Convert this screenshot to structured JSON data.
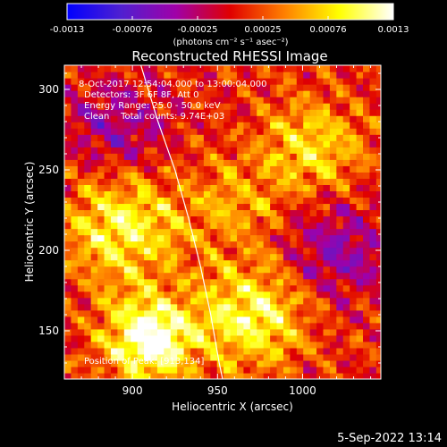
{
  "chart_data": {
    "type": "heatmap",
    "title": "Reconstructed RHESSI Image",
    "xlabel": "Heliocentric X (arcsec)",
    "ylabel": "Heliocentric Y (arcsec)",
    "xlim": [
      860,
      1046
    ],
    "ylim": [
      120,
      315
    ],
    "xticks": [
      900,
      950,
      1000
    ],
    "yticks": [
      150,
      200,
      250,
      300
    ],
    "colorbar": {
      "range": [
        -0.0013,
        0.0013
      ],
      "ticks": [
        "-0.0013",
        "-0.00076",
        "-0.00025",
        "0.00025",
        "0.00076",
        "0.0013"
      ],
      "units_label": "(photons cm⁻² s⁻¹ asec⁻²)",
      "colormap": [
        "#0000ff",
        "#5020d0",
        "#a000a8",
        "#e00000",
        "#ff8000",
        "#ffff00",
        "#ffffff"
      ]
    },
    "annotations": {
      "time_range": "8-Oct-2017 12:54:04.000 to 13:00:04.000",
      "detectors": "Detectors: 3F 6F 8F, Att 0",
      "energy": "Energy Range: 25.0 - 50.0 keV",
      "method_counts": "Clean    Total counts: 9.74E+03",
      "position": "Position of Peak: [913,134]"
    },
    "peak": [
      913,
      134
    ],
    "limb_curve": [
      [
        905,
        315
      ],
      [
        915,
        280
      ],
      [
        925,
        250
      ],
      [
        933,
        220
      ],
      [
        940,
        190
      ],
      [
        946,
        160
      ],
      [
        951,
        130
      ],
      [
        953,
        120
      ]
    ],
    "sources": [
      {
        "x": 910,
        "y": 145,
        "amp": 1.0,
        "r": 18
      },
      {
        "x": 895,
        "y": 215,
        "amp": 0.65,
        "r": 25
      },
      {
        "x": 970,
        "y": 160,
        "amp": 0.7,
        "r": 22
      },
      {
        "x": 1005,
        "y": 265,
        "amp": 0.55,
        "r": 20
      },
      {
        "x": 960,
        "y": 230,
        "amp": 0.35,
        "r": 18
      },
      {
        "x": 1020,
        "y": 200,
        "amp": -0.45,
        "r": 20
      },
      {
        "x": 890,
        "y": 275,
        "amp": -0.4,
        "r": 22
      }
    ]
  },
  "footer": {
    "date": "5-Sep-2022 13:14"
  }
}
